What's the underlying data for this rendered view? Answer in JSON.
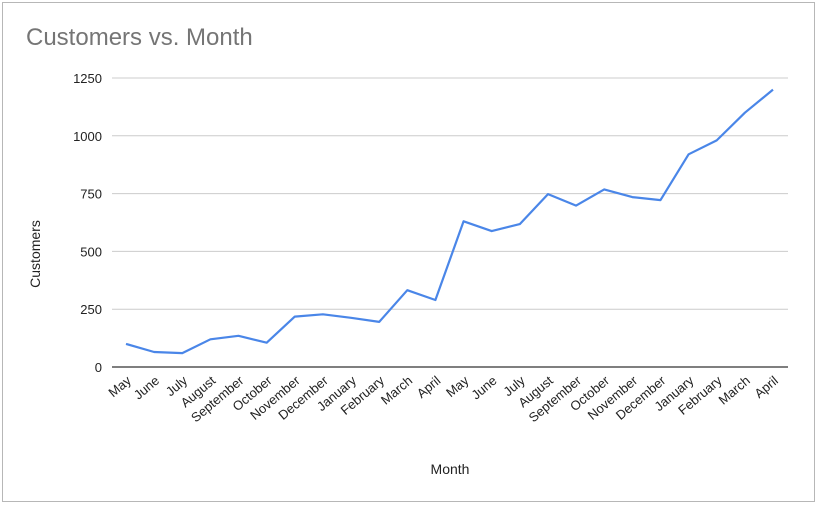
{
  "chart_data": {
    "type": "line",
    "title": "Customers vs. Month",
    "xlabel": "Month",
    "ylabel": "Customers",
    "ylim": [
      0,
      1250
    ],
    "yticks": [
      0,
      250,
      500,
      750,
      1000,
      1250
    ],
    "grid": true,
    "categories": [
      "May",
      "June",
      "July",
      "August",
      "September",
      "October",
      "November",
      "December",
      "January",
      "February",
      "March",
      "April",
      "May",
      "June",
      "July",
      "August",
      "September",
      "October",
      "November",
      "December",
      "January",
      "February",
      "March",
      "April"
    ],
    "series": [
      {
        "values": [
          100,
          65,
          60,
          120,
          135,
          105,
          218,
          228,
          213,
          195,
          332,
          290,
          630,
          588,
          618,
          748,
          698,
          768,
          735,
          722,
          920,
          980,
          1100,
          1200
        ],
        "color": "#4a86e8"
      }
    ]
  }
}
